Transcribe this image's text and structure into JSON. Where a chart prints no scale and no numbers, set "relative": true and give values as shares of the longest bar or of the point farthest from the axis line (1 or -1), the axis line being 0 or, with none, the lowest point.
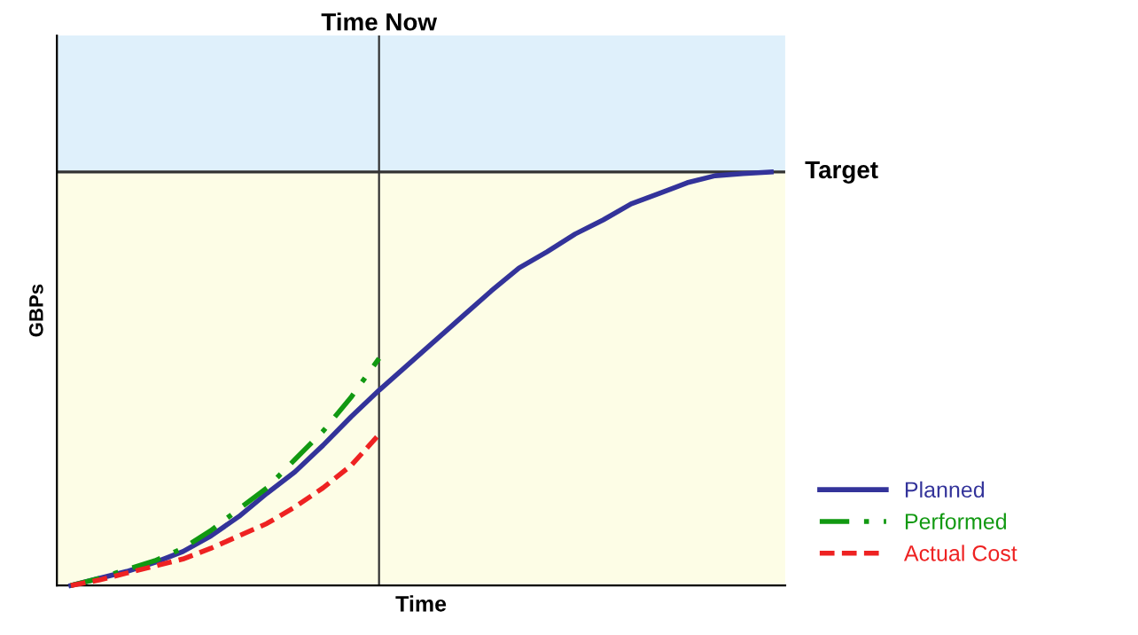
{
  "chart_data": {
    "type": "line",
    "relative": true,
    "xlabel": "Time",
    "ylabel": "GBPs",
    "categories": [
      null,
      null,
      null,
      null,
      null,
      null,
      null,
      null,
      null,
      null,
      null,
      null,
      null,
      null,
      null,
      null,
      null,
      null,
      null,
      null,
      null,
      null,
      null,
      null,
      null,
      null
    ],
    "series": [
      {
        "name": "Planned",
        "color": "#33339a",
        "line_style": "solid",
        "values": [
          0,
          0.017,
          0.034,
          0.056,
          0.082,
          0.12,
          0.167,
          0.223,
          0.275,
          0.339,
          0.408,
          0.472,
          0.532,
          0.592,
          0.652,
          0.712,
          0.768,
          0.807,
          0.85,
          0.884,
          0.923,
          0.948,
          0.974,
          0.991,
          0.996,
          1
        ]
      },
      {
        "name": "Performed",
        "color": "#119911",
        "line_style": "dashdot",
        "values": [
          0,
          0.017,
          0.039,
          0.06,
          0.09,
          0.133,
          0.185,
          0.236,
          0.305,
          0.373,
          0.455,
          0.549,
          null,
          null,
          null,
          null,
          null,
          null,
          null,
          null,
          null,
          null,
          null,
          null,
          null,
          null
        ]
      },
      {
        "name": "Actual Cost",
        "color": "#ee2222",
        "line_style": "dashed",
        "values": [
          0,
          0.013,
          0.03,
          0.047,
          0.064,
          0.09,
          0.12,
          0.15,
          0.19,
          0.236,
          0.29,
          0.365,
          null,
          null,
          null,
          null,
          null,
          null,
          null,
          null,
          null,
          null,
          null,
          null,
          null,
          null
        ]
      }
    ],
    "annotations": [
      "Time Now"
    ],
    "ref_lines": [
      {
        "axis": "y",
        "value": 1,
        "label": "Target",
        "color": "#333333"
      }
    ],
    "bands": [
      {
        "axis": "y",
        "from": 1,
        "to": 1.33,
        "color": "#dff0fb"
      },
      {
        "axis": "y",
        "from": 0,
        "to": 1,
        "color": "#fdfde6"
      }
    ],
    "legend": "bottom right",
    "marker": "none"
  }
}
